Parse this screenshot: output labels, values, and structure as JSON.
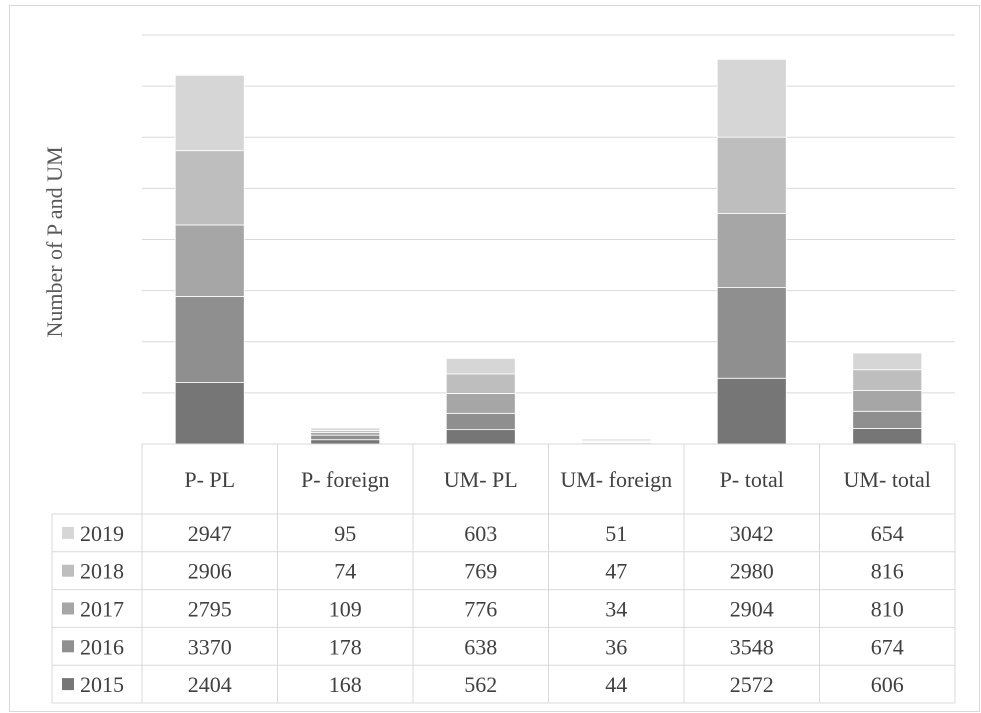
{
  "chart_data": {
    "type": "bar",
    "stacked": true,
    "categories": [
      "P- PL",
      "P- foreign",
      "UM- PL",
      "UM- foreign",
      "P- total",
      "UM- total"
    ],
    "series": [
      {
        "name": "2015",
        "values": [
          2404,
          168,
          562,
          44,
          2572,
          606
        ],
        "color": "#767676"
      },
      {
        "name": "2016",
        "values": [
          3370,
          178,
          638,
          36,
          3548,
          674
        ],
        "color": "#8f8f8f"
      },
      {
        "name": "2017",
        "values": [
          2795,
          109,
          776,
          34,
          2904,
          810
        ],
        "color": "#a6a6a6"
      },
      {
        "name": "2018",
        "values": [
          2906,
          74,
          769,
          47,
          2980,
          816
        ],
        "color": "#bebebe"
      },
      {
        "name": "2019",
        "values": [
          2947,
          95,
          603,
          51,
          3042,
          654
        ],
        "color": "#d6d6d6"
      }
    ],
    "table_row_order": [
      "2019",
      "2018",
      "2017",
      "2016",
      "2015"
    ],
    "xlabel": "",
    "ylabel": "Number of P and UM",
    "ylim": [
      0,
      16000
    ],
    "grid": true,
    "legend": "data-table"
  }
}
